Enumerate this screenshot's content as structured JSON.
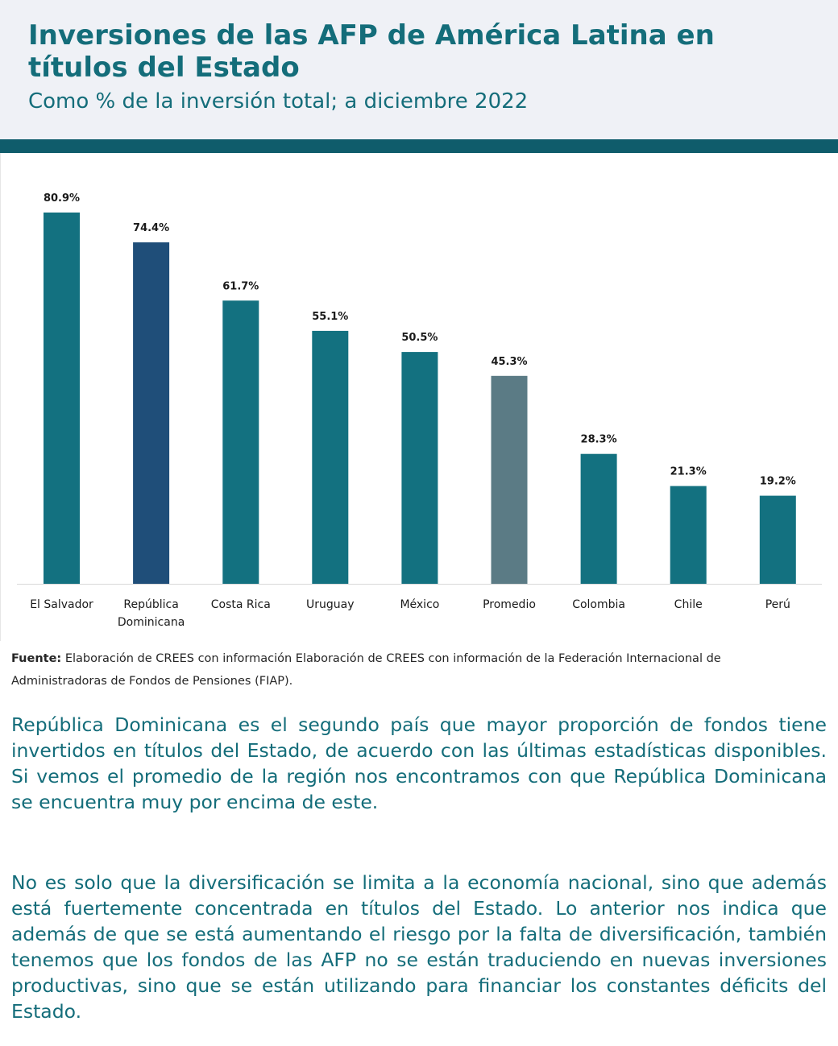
{
  "header": {
    "title": "Inversiones de las AFP de América Latina en títulos del Estado",
    "subtitle": "Como % de la inversión total; a diciembre 2022"
  },
  "colors": {
    "header_bg": "#eff1f6",
    "accent": "#146d7a",
    "rule": "#0f5c6b",
    "bar_default": "#137180",
    "bar_highlight": "#1f4e79",
    "bar_average": "#5b7b85"
  },
  "chart_data": {
    "type": "bar",
    "title": "Inversiones de las AFP de América Latina en títulos del Estado",
    "subtitle": "Como % de la inversión total; a diciembre 2022",
    "categories": [
      [
        "El Salvador"
      ],
      [
        "República",
        "Dominicana"
      ],
      [
        "Costa Rica"
      ],
      [
        "Uruguay"
      ],
      [
        "México"
      ],
      [
        "Promedio"
      ],
      [
        "Colombia"
      ],
      [
        "Chile"
      ],
      [
        "Perú"
      ]
    ],
    "values": [
      80.9,
      74.4,
      61.7,
      55.1,
      50.5,
      45.3,
      28.3,
      21.3,
      19.2
    ],
    "value_labels": [
      "80.9%",
      "74.4%",
      "61.7%",
      "55.1%",
      "50.5%",
      "45.3%",
      "28.3%",
      "21.3%",
      "19.2%"
    ],
    "bar_roles": [
      "default",
      "highlight",
      "default",
      "default",
      "default",
      "average",
      "default",
      "default",
      "default"
    ],
    "xlabel": "",
    "ylabel": "",
    "ylim": [
      0,
      100
    ],
    "grid": false,
    "legend": "none"
  },
  "source": {
    "label": "Fuente:",
    "text": "Elaboración de CREES con información Elaboración de CREES con información de la Federación Internacional de Administradoras de Fondos de Pensiones (FIAP)."
  },
  "body": {
    "paragraph_1": "República Dominicana es el segundo país que mayor proporción de fondos tiene invertidos en títulos del Estado, de acuerdo con las últimas estadísticas disponibles. Si vemos el promedio de la región nos encontramos con que República Dominicana se encuentra muy por encima de este.",
    "paragraph_2": "No es solo que la diversificación se limita a la economía nacional, sino que además está fuertemente concentrada en títulos del Estado. Lo anterior nos indica que además de que se está aumentando el riesgo por la falta de diversificación, también tenemos que los fondos de las AFP no se están traduciendo en nuevas inversiones productivas, sino que se están utilizando para financiar los constantes déficits del Estado."
  }
}
